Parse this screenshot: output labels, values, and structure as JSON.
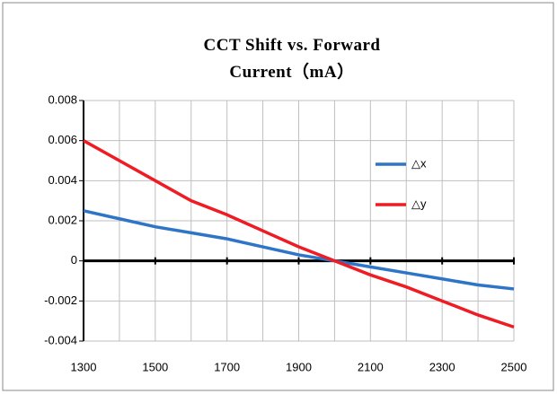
{
  "chart_data": {
    "type": "line",
    "title": "CCT Shift vs. Forward Current（mA）",
    "x": [
      1300,
      1400,
      1500,
      1600,
      1700,
      1800,
      1900,
      2000,
      2100,
      2200,
      2300,
      2400,
      2500
    ],
    "series": [
      {
        "name": "△x",
        "color": "#2e75c8",
        "values": [
          0.0025,
          0.0021,
          0.0017,
          0.0014,
          0.0011,
          0.0007,
          0.0003,
          0,
          -0.0003,
          -0.0006,
          -0.0009,
          -0.0012,
          -0.0014
        ]
      },
      {
        "name": "△y",
        "color": "#ee1c24",
        "values": [
          0.006,
          0.005,
          0.004,
          0.003,
          0.0023,
          0.0015,
          0.0007,
          0,
          -0.0007,
          -0.0013,
          -0.002,
          -0.0027,
          -0.0033
        ]
      }
    ],
    "xlim": [
      1300,
      2500
    ],
    "xticks": [
      1300,
      1500,
      1700,
      1900,
      2100,
      2300,
      2500
    ],
    "ylim": [
      -0.004,
      0.008
    ],
    "yticks": [
      0.008,
      0.006,
      0.004,
      0.002,
      0,
      -0.002,
      -0.004
    ],
    "grid": true,
    "legend": "right"
  }
}
